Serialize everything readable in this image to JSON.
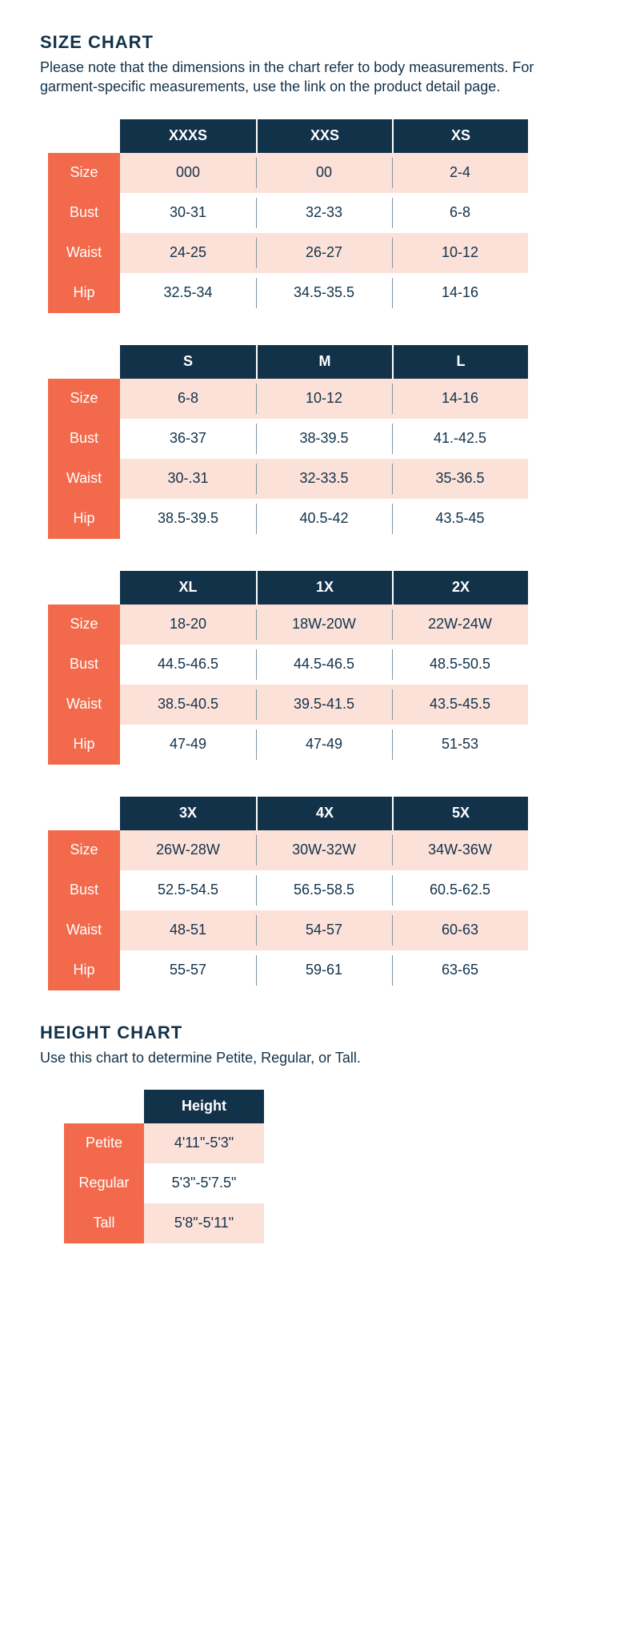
{
  "colors": {
    "header_bg": "#12324a",
    "header_text": "#ffffff",
    "rowlabel_bg": "#f26a4b",
    "rowlabel_text": "#ffffff",
    "stripe_bg": "#fce1d9",
    "plain_bg": "#ffffff",
    "body_text": "#12324a",
    "divider": "#7f94a0"
  },
  "size_chart": {
    "title": "SIZE CHART",
    "description": "Please note that the dimensions in the chart refer to body measurements. For garment-specific measurements, use the link on the product detail page.",
    "row_labels": [
      "Size",
      "Bust",
      "Waist",
      "Hip"
    ],
    "blocks": [
      {
        "headers": [
          "XXXS",
          "XXS",
          "XS"
        ],
        "rows": [
          [
            "000",
            "00",
            "2-4"
          ],
          [
            "30-31",
            "32-33",
            "6-8"
          ],
          [
            "24-25",
            "26-27",
            "10-12"
          ],
          [
            "32.5-34",
            "34.5-35.5",
            "14-16"
          ]
        ]
      },
      {
        "headers": [
          "S",
          "M",
          "L"
        ],
        "rows": [
          [
            "6-8",
            "10-12",
            "14-16"
          ],
          [
            "36-37",
            "38-39.5",
            "41.-42.5"
          ],
          [
            "30-.31",
            "32-33.5",
            "35-36.5"
          ],
          [
            "38.5-39.5",
            "40.5-42",
            "43.5-45"
          ]
        ]
      },
      {
        "headers": [
          "XL",
          "1X",
          "2X"
        ],
        "rows": [
          [
            "18-20",
            "18W-20W",
            "22W-24W"
          ],
          [
            "44.5-46.5",
            "44.5-46.5",
            "48.5-50.5"
          ],
          [
            "38.5-40.5",
            "39.5-41.5",
            "43.5-45.5"
          ],
          [
            "47-49",
            "47-49",
            "51-53"
          ]
        ]
      },
      {
        "headers": [
          "3X",
          "4X",
          "5X"
        ],
        "rows": [
          [
            "26W-28W",
            "30W-32W",
            "34W-36W"
          ],
          [
            "52.5-54.5",
            "56.5-58.5",
            "60.5-62.5"
          ],
          [
            "48-51",
            "54-57",
            "60-63"
          ],
          [
            "55-57",
            "59-61",
            "63-65"
          ]
        ]
      }
    ]
  },
  "height_chart": {
    "title": "HEIGHT CHART",
    "description": "Use this chart to determine Petite, Regular, or Tall.",
    "header": "Height",
    "rows": [
      {
        "label": "Petite",
        "value": "4'11\"-5'3\""
      },
      {
        "label": "Regular",
        "value": "5'3\"-5'7.5\""
      },
      {
        "label": "Tall",
        "value": "5'8\"-5'11\""
      }
    ]
  }
}
